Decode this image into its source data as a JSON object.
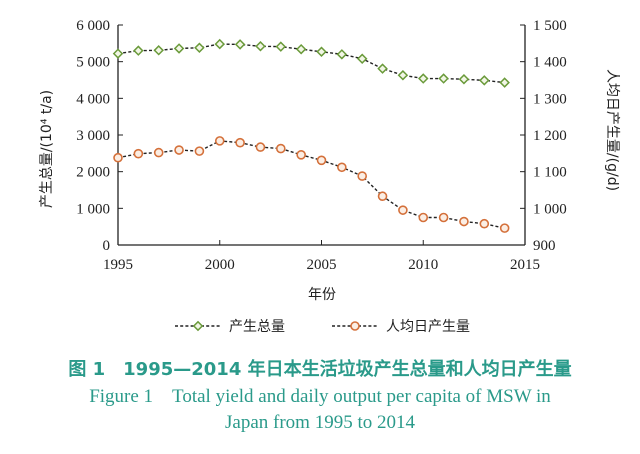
{
  "chart_data": {
    "type": "line",
    "x": [
      1995,
      1996,
      1997,
      1998,
      1999,
      2000,
      2001,
      2002,
      2003,
      2004,
      2005,
      2006,
      2007,
      2008,
      2009,
      2010,
      2011,
      2012,
      2013,
      2014
    ],
    "xlabel": "年份",
    "xlim": [
      1995,
      2015
    ],
    "xticks": [
      "1995",
      "2000",
      "2005",
      "2010",
      "2015"
    ],
    "left_axis": {
      "label": "产生总量/(10⁴ t/a)",
      "ylim": [
        0,
        6000
      ],
      "ticks": [
        "0",
        "1 000",
        "2 000",
        "3 000",
        "4 000",
        "5 000",
        "6 000"
      ]
    },
    "right_axis": {
      "label": "人均日产生量/(g/d)",
      "ylim": [
        900,
        1500
      ],
      "ticks": [
        "900",
        "1 000",
        "1 100",
        "1 200",
        "1 300",
        "1 400",
        "1 500"
      ]
    },
    "series": [
      {
        "name": "产生总量",
        "axis": "left",
        "marker": "diamond",
        "color": "#6a9a3a",
        "values": [
          5220,
          5300,
          5310,
          5360,
          5380,
          5480,
          5470,
          5420,
          5410,
          5340,
          5270,
          5200,
          5080,
          4810,
          4630,
          4540,
          4540,
          4520,
          4490,
          4430
        ]
      },
      {
        "name": "人均日产生量",
        "axis": "right",
        "marker": "circle",
        "color": "#d4703a",
        "values": [
          1138,
          1149,
          1152,
          1159,
          1156,
          1184,
          1179,
          1167,
          1163,
          1146,
          1131,
          1112,
          1088,
          1033,
          995,
          975,
          975,
          964,
          958,
          946
        ]
      }
    ],
    "grid": false,
    "legend": "bottom"
  },
  "caption": {
    "zh": "图 1　1995—2014 年日本生活垃圾产生总量和人均日产生量",
    "en_line1": "Figure 1　Total yield and daily output per capita  of MSW in",
    "en_line2": "Japan from 1995 to 2014"
  }
}
